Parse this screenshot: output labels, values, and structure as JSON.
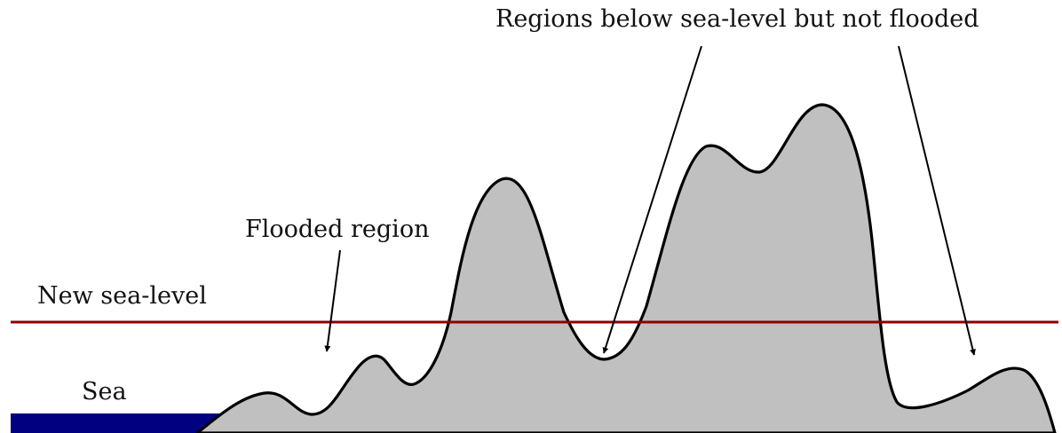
{
  "diagram": {
    "labels": {
      "unflooded_regions": "Regions below sea-level but not flooded",
      "flooded_region": "Flooded region",
      "new_sea_level": "New sea-level",
      "sea": "Sea"
    },
    "colors": {
      "terrain_fill": "#c0c0c0",
      "terrain_outline": "#000000",
      "sea_level_line": "#8b0000",
      "sea": "#000080",
      "arrows": "#000000"
    }
  }
}
